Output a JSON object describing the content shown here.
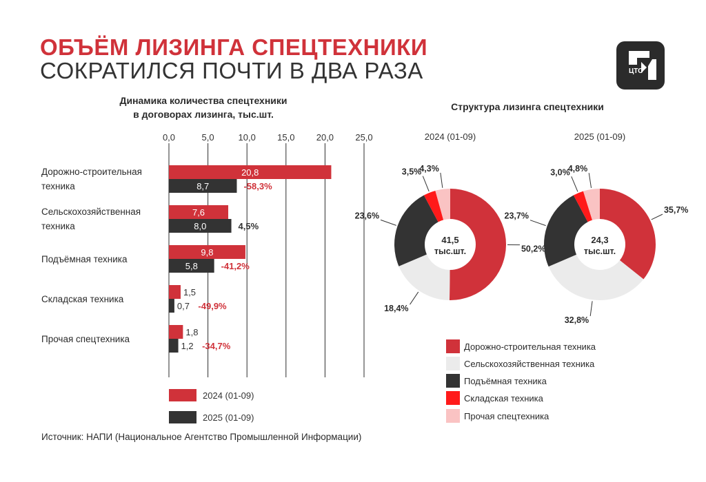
{
  "title": {
    "line1": "ОБЪЁМ ЛИЗИНГА СПЕЦТЕХНИКИ",
    "line2": "СОКРАТИЛСЯ ПОЧТИ В ДВА РАЗА"
  },
  "logo": {
    "icon": "cto-logo-icon",
    "text": "ЦТО"
  },
  "source": "Источник: НАПИ (Национальное Агентство Промышленной Информации)",
  "colors": {
    "red": "#d0323a",
    "dark": "#333333",
    "light_grey": "#ebebeb",
    "bright_red": "#ff1a1a",
    "pink": "#fac3c3"
  },
  "chart_data": [
    {
      "type": "bar",
      "orientation": "horizontal",
      "title_line1": "Динамика количества спецтехники",
      "title_line2": "в договорах лизинга, тыс.шт.",
      "categories": [
        [
          "Дорожно-строительная",
          "техника"
        ],
        [
          "Сельскохозяйственная",
          "техника"
        ],
        [
          "Подъёмная техника"
        ],
        [
          "Складская техника"
        ],
        [
          "Прочая спецтехника"
        ]
      ],
      "series": [
        {
          "name": "2024 (01-09)",
          "values": [
            20.8,
            7.6,
            9.8,
            1.5,
            1.8
          ],
          "labels": [
            "20,8",
            "7,6",
            "9,8",
            "1,5",
            "1,8"
          ]
        },
        {
          "name": "2025 (01-09)",
          "values": [
            8.7,
            8.0,
            5.8,
            0.7,
            1.2
          ],
          "labels": [
            "8,7",
            "8,0",
            "5,8",
            "0,7",
            "1,2"
          ]
        }
      ],
      "changes": [
        "-58,3%",
        "4,5%",
        "-41,2%",
        "-49,9%",
        "-34,7%"
      ],
      "xlim": [
        0,
        25
      ],
      "ticks": [
        0,
        5,
        10,
        15,
        20,
        25
      ],
      "tick_labels": [
        "0,0",
        "5,0",
        "10,0",
        "15,0",
        "20,0",
        "25,0"
      ],
      "legend": [
        "2024 (01-09)",
        "2025 (01-09)"
      ]
    },
    {
      "type": "pie",
      "variant": "donut",
      "title": "Структура лизинга спецтехники",
      "charts": [
        {
          "label": "2024 (01-09)",
          "center_value": "41,5",
          "center_unit": "тыс.шт.",
          "values": [
            50.2,
            18.4,
            23.6,
            3.5,
            4.3
          ],
          "labels": [
            "50,2%",
            "18,4%",
            "23,6%",
            "3,5%",
            "4,3%"
          ]
        },
        {
          "label": "2025 (01-09)",
          "center_value": "24,3",
          "center_unit": "тыс.шт.",
          "values": [
            35.7,
            32.8,
            23.7,
            3.0,
            4.8
          ],
          "labels": [
            "35,7%",
            "32,8%",
            "23,7%",
            "3,0%",
            "4,8%"
          ]
        }
      ],
      "legend": [
        "Дорожно-строительная техника",
        "Сельскохозяйственная техника",
        "Подъёмная техника",
        "Складская техника",
        "Прочая спецтехника"
      ]
    }
  ]
}
